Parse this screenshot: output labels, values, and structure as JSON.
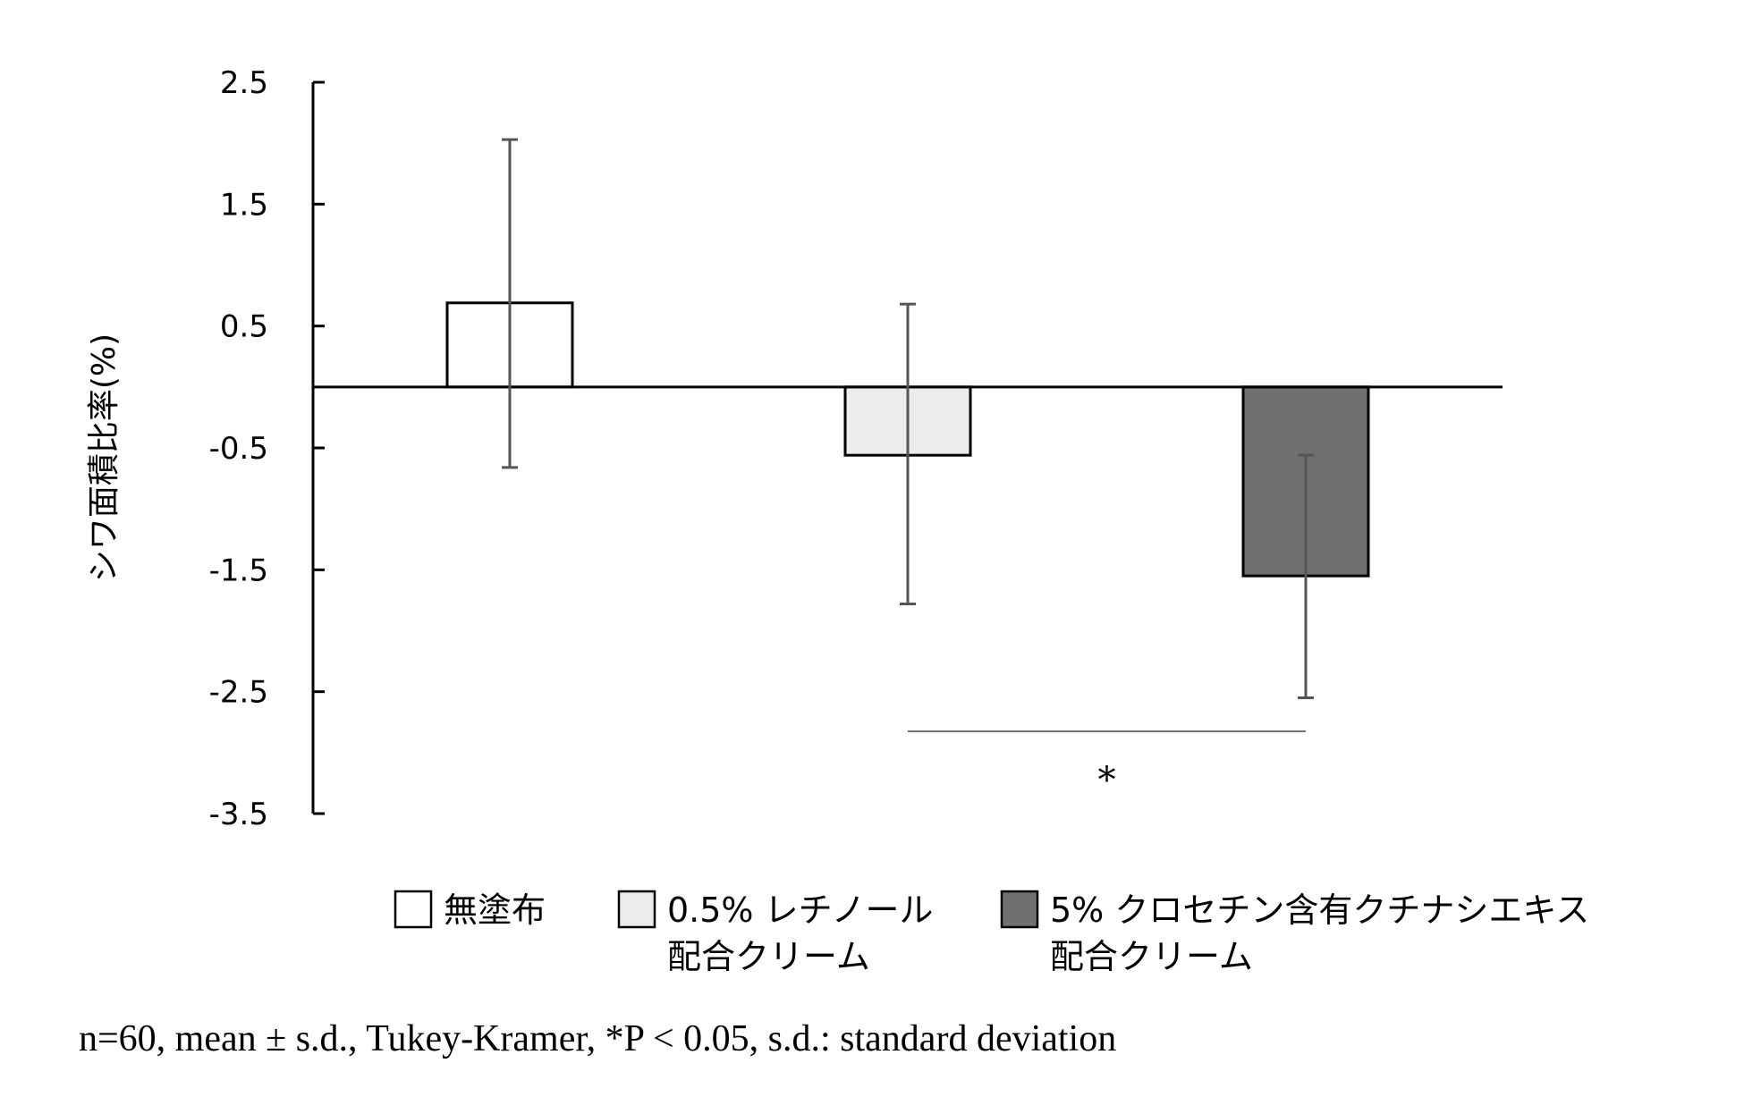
{
  "chart_data": {
    "type": "bar",
    "ylabel": "シワ面積比率(%)",
    "ylim": [
      -3.5,
      2.5
    ],
    "yticks": [
      "2.5",
      "1.5",
      "0.5",
      "-0.5",
      "-1.5",
      "-2.5",
      "-3.5"
    ],
    "grid": false,
    "legend_position": "bottom",
    "categories": [
      "無塗布",
      "0.5% レチノール 配合クリーム",
      "5% クロセチン含有クチナシエキス 配合クリーム"
    ],
    "values": [
      0.69,
      -0.56,
      -1.55
    ],
    "error_low": [
      -0.66,
      -1.78,
      -2.55
    ],
    "error_high": [
      2.03,
      0.68,
      -0.56
    ],
    "colors": [
      "#ffffff",
      "#ececec",
      "#707070"
    ],
    "significance": {
      "between": [
        1,
        2
      ],
      "label": "*"
    }
  },
  "legend": [
    {
      "line1": "無塗布",
      "line2": "",
      "color": "#ffffff"
    },
    {
      "line1": "0.5% レチノール",
      "line2": "配合クリーム",
      "color": "#ececec"
    },
    {
      "line1": "5% クロセチン含有クチナシエキス",
      "line2": "配合クリーム",
      "color": "#707070"
    }
  ],
  "footnote": "n=60, mean ± s.d., Tukey-Kramer, *P < 0.05, s.d.: standard deviation"
}
